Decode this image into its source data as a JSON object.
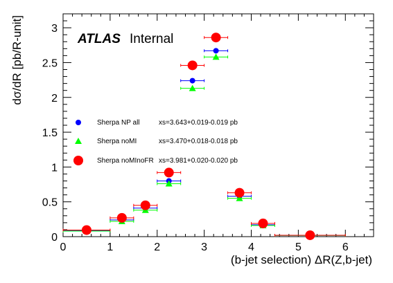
{
  "experiment_label": {
    "bold": "ATLAS",
    "normal": "Internal"
  },
  "chart_data": {
    "type": "scatter",
    "xlabel": "(b-jet selection) ΔR(Z,b-jet)",
    "ylabel": "dσ/dR [pb/R-unit]",
    "xlim": [
      0,
      6.6
    ],
    "ylim": [
      0,
      3.2
    ],
    "xticks": [
      "0",
      "1",
      "2",
      "3",
      "4",
      "5",
      "6"
    ],
    "yticks": [
      "0",
      "0.5",
      "1",
      "1.5",
      "2",
      "2.5",
      "3"
    ],
    "grid": false,
    "legend_position": "left-middle",
    "series": [
      {
        "name": "Sherpa NP all",
        "xs_label": "xs=3.643+0.019-0.019 pb",
        "color": "#0000ff",
        "marker": "circle",
        "points": [
          {
            "x": 0.5,
            "xlo": 0.0,
            "xhi": 1.0,
            "y": 0.085
          },
          {
            "x": 1.25,
            "xlo": 1.0,
            "xhi": 1.5,
            "y": 0.24
          },
          {
            "x": 1.75,
            "xlo": 1.5,
            "xhi": 2.0,
            "y": 0.41
          },
          {
            "x": 2.25,
            "xlo": 2.0,
            "xhi": 2.5,
            "y": 0.8
          },
          {
            "x": 2.75,
            "xlo": 2.5,
            "xhi": 3.0,
            "y": 2.24
          },
          {
            "x": 3.25,
            "xlo": 3.0,
            "xhi": 3.5,
            "y": 2.67
          },
          {
            "x": 3.75,
            "xlo": 3.5,
            "xhi": 4.0,
            "y": 0.58
          },
          {
            "x": 4.25,
            "xlo": 4.0,
            "xhi": 4.5,
            "y": 0.17
          },
          {
            "x": 5.25,
            "xlo": 4.5,
            "xhi": 6.0,
            "y": 0.018
          }
        ]
      },
      {
        "name": "Sherpa noMI",
        "xs_label": "xs=3.470+0.018-0.018 pb",
        "color": "#00ff00",
        "marker": "triangle",
        "points": [
          {
            "x": 0.5,
            "xlo": 0.0,
            "xhi": 1.0,
            "y": 0.08
          },
          {
            "x": 1.25,
            "xlo": 1.0,
            "xhi": 1.5,
            "y": 0.22
          },
          {
            "x": 1.75,
            "xlo": 1.5,
            "xhi": 2.0,
            "y": 0.38
          },
          {
            "x": 2.25,
            "xlo": 2.0,
            "xhi": 2.5,
            "y": 0.76
          },
          {
            "x": 2.75,
            "xlo": 2.5,
            "xhi": 3.0,
            "y": 2.13
          },
          {
            "x": 3.25,
            "xlo": 3.0,
            "xhi": 3.5,
            "y": 2.58
          },
          {
            "x": 3.75,
            "xlo": 3.5,
            "xhi": 4.0,
            "y": 0.55
          },
          {
            "x": 4.25,
            "xlo": 4.0,
            "xhi": 4.5,
            "y": 0.16
          },
          {
            "x": 5.25,
            "xlo": 4.5,
            "xhi": 6.0,
            "y": 0.017
          }
        ]
      },
      {
        "name": "Sherpa noMInoFR",
        "xs_label": "xs=3.981+0.020-0.020 pb",
        "color": "#ff0000",
        "marker": "circle-large",
        "points": [
          {
            "x": 0.5,
            "xlo": 0.0,
            "xhi": 1.0,
            "y": 0.095
          },
          {
            "x": 1.25,
            "xlo": 1.0,
            "xhi": 1.5,
            "y": 0.27
          },
          {
            "x": 1.75,
            "xlo": 1.5,
            "xhi": 2.0,
            "y": 0.45
          },
          {
            "x": 2.25,
            "xlo": 2.0,
            "xhi": 2.5,
            "y": 0.92
          },
          {
            "x": 2.75,
            "xlo": 2.5,
            "xhi": 3.0,
            "y": 2.46
          },
          {
            "x": 3.25,
            "xlo": 3.0,
            "xhi": 3.5,
            "y": 2.86
          },
          {
            "x": 3.75,
            "xlo": 3.5,
            "xhi": 4.0,
            "y": 0.63
          },
          {
            "x": 4.25,
            "xlo": 4.0,
            "xhi": 4.5,
            "y": 0.19
          },
          {
            "x": 5.25,
            "xlo": 4.5,
            "xhi": 6.0,
            "y": 0.02
          }
        ]
      }
    ]
  }
}
